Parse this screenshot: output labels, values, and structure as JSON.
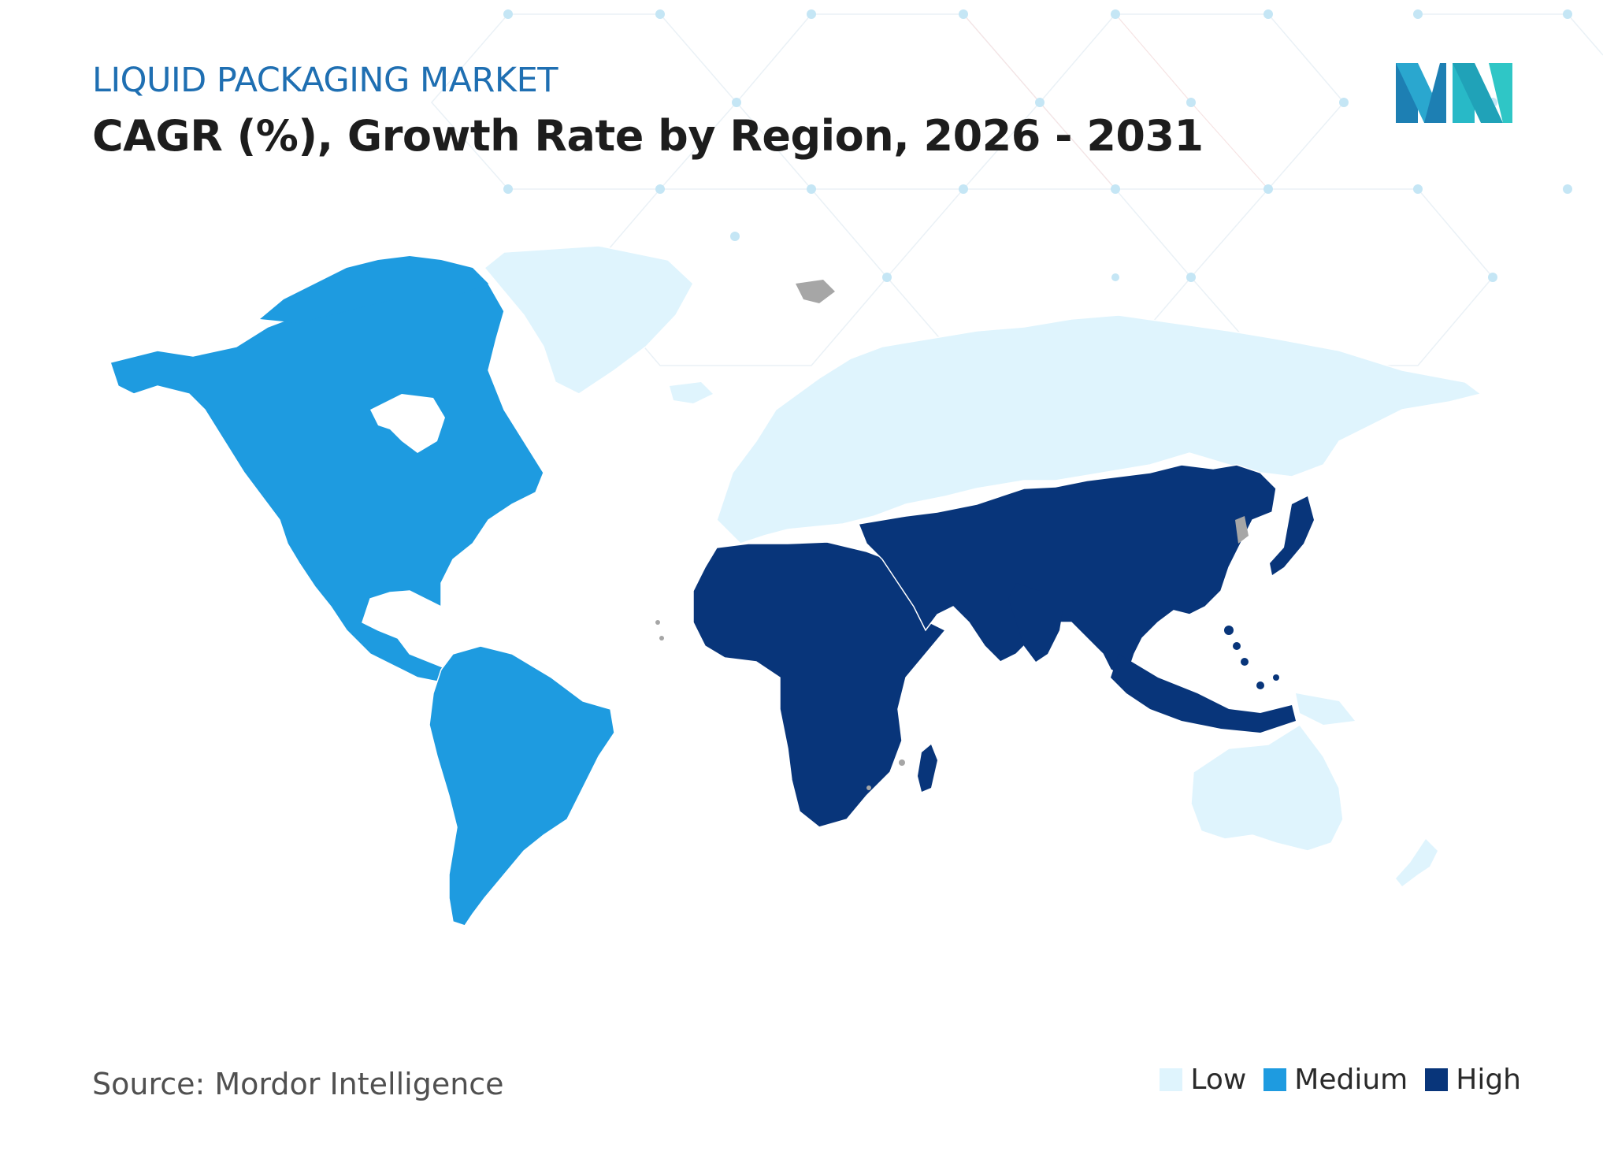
{
  "header": {
    "subtitle": "LIQUID PACKAGING MARKET",
    "title": "CAGR (%), Growth Rate by Region, 2026 - 2031"
  },
  "source": "Source: Mordor Intelligence",
  "legend": [
    {
      "label": "Low",
      "color": "#dff4fd"
    },
    {
      "label": "Medium",
      "color": "#1e9be0"
    },
    {
      "label": "High",
      "color": "#08357a"
    }
  ],
  "map": {
    "regions": [
      {
        "name": "North America",
        "level": "Medium"
      },
      {
        "name": "South America",
        "level": "Medium"
      },
      {
        "name": "Europe",
        "level": "Low"
      },
      {
        "name": "Greenland",
        "level": "Low"
      },
      {
        "name": "Russia",
        "level": "Low"
      },
      {
        "name": "Australia and New Zealand",
        "level": "Low"
      },
      {
        "name": "Africa",
        "level": "High"
      },
      {
        "name": "Middle East",
        "level": "High"
      },
      {
        "name": "Asia-Pacific",
        "level": "High"
      }
    ],
    "no_data_color": "#a6a6a6"
  }
}
